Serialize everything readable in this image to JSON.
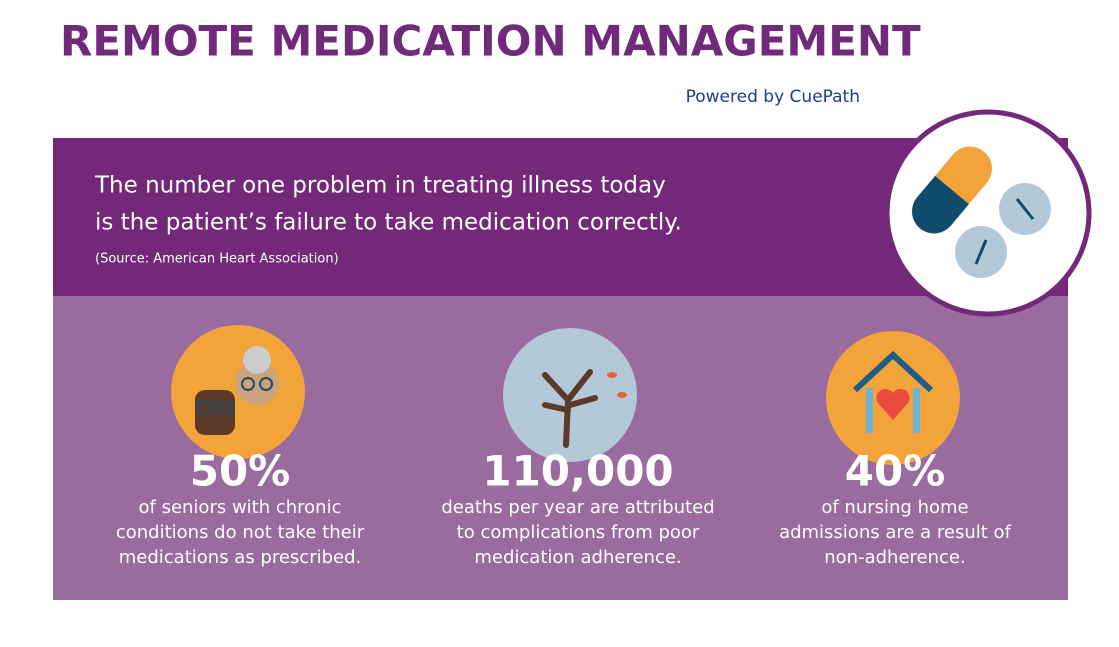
{
  "header": {
    "title": "REMOTE MEDICATION MANAGEMENT",
    "powered_by": "Powered by CuePath"
  },
  "quote": {
    "lines": [
      "The number one problem in treating illness today",
      "is the patient’s failure to take medication correctly."
    ],
    "source": "(Source: American Heart Association)"
  },
  "stats": [
    {
      "figure": "50%",
      "lines": [
        "of seniors with chronic",
        "conditions do not take their",
        "medications as prescribed."
      ]
    },
    {
      "figure": "110,000",
      "lines": [
        "deaths per year are attributed",
        "to complications from poor",
        "medication adherence."
      ]
    },
    {
      "figure": "40%",
      "lines": [
        "of nursing home",
        "admissions are a result of",
        "non-adherence."
      ]
    }
  ]
}
